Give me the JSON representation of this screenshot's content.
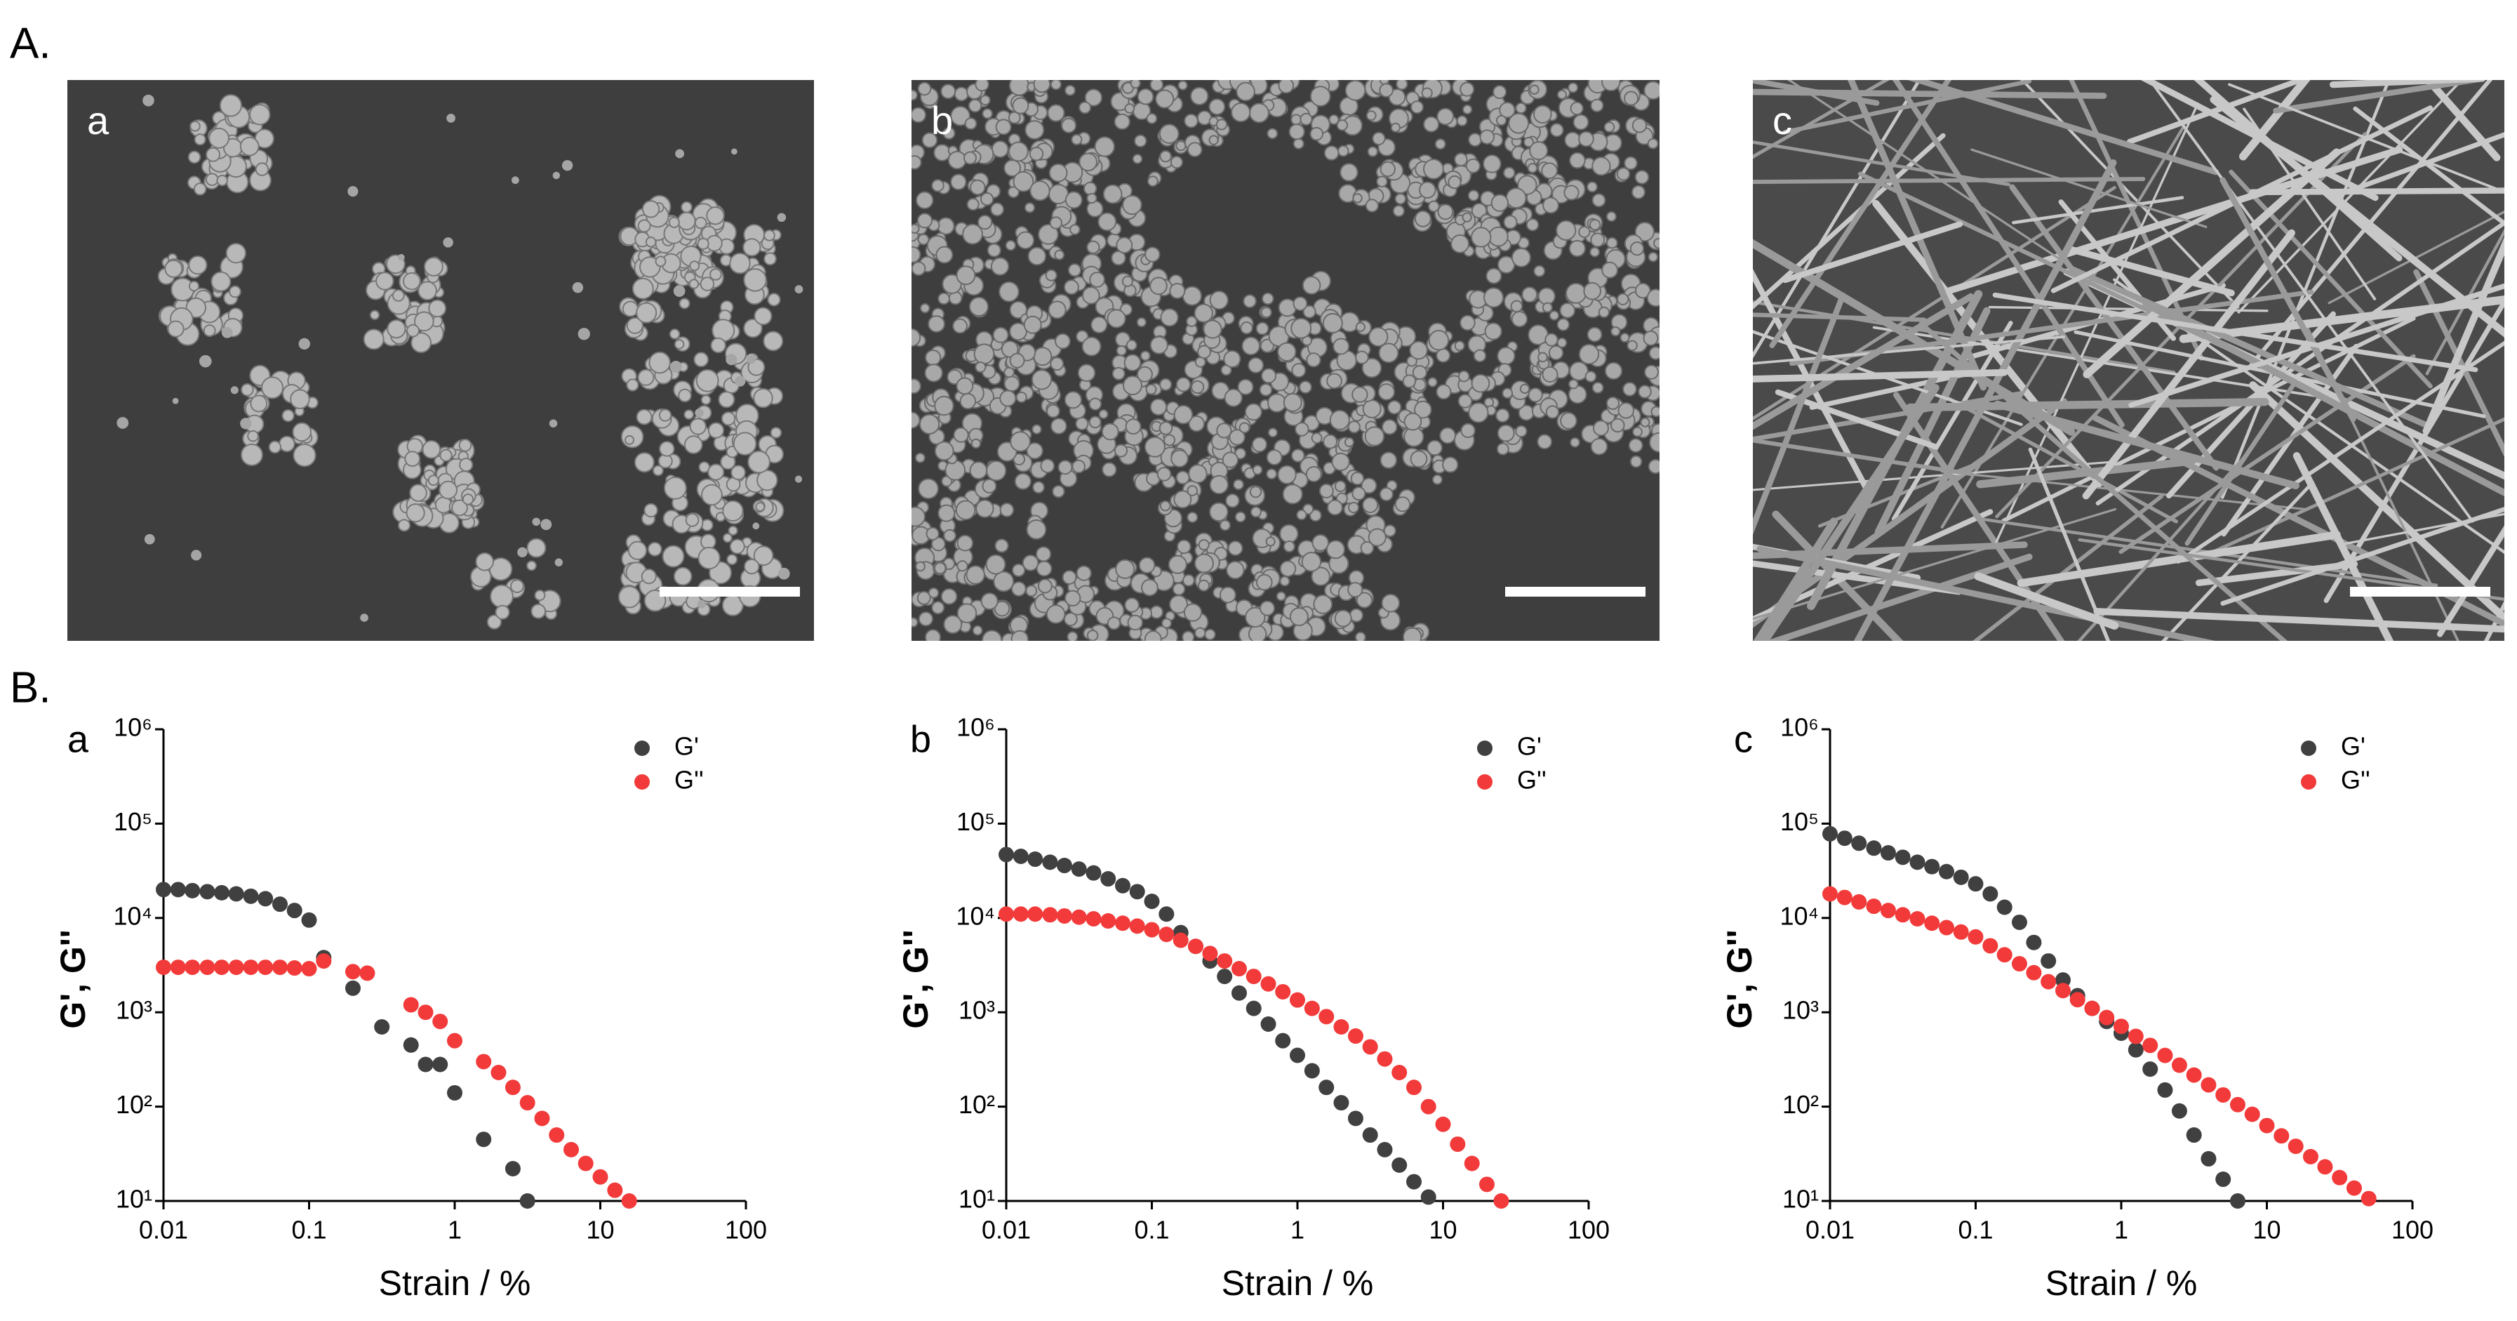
{
  "figure": {
    "section_a": "A.",
    "section_b": "B.",
    "images": [
      {
        "label": "a"
      },
      {
        "label": "b"
      },
      {
        "label": "c"
      }
    ]
  },
  "chart_data": [
    {
      "type": "scatter",
      "title": "a",
      "xlabel": "Strain / %",
      "ylabel": "G', G''",
      "xscale": "log",
      "yscale": "log",
      "legend": "upper right",
      "xlim": [
        0.01,
        100
      ],
      "ylim": [
        10,
        1000000
      ],
      "xticks": [
        0.01,
        0.1,
        1,
        10,
        100
      ],
      "yticks": [
        {
          "value": 10,
          "label": "10¹"
        },
        {
          "value": 100,
          "label": "10²"
        },
        {
          "value": 1000,
          "label": "10³"
        },
        {
          "value": 10000,
          "label": "10⁴"
        },
        {
          "value": 100000,
          "label": "10⁵"
        },
        {
          "value": 1000000,
          "label": "10⁶"
        }
      ],
      "x": [
        0.01,
        0.0126,
        0.0158,
        0.02,
        0.0251,
        0.0316,
        0.0398,
        0.0501,
        0.0631,
        0.0794,
        0.1,
        0.126,
        0.158,
        0.2,
        0.251,
        0.316,
        0.398,
        0.501,
        0.631,
        0.794,
        1,
        1.26,
        1.58,
        2,
        2.51,
        3.16,
        3.98,
        5.01,
        6.31,
        7.94,
        10,
        12.6,
        15.8,
        20,
        25.1,
        31.6,
        39.8,
        50.1
      ],
      "series": [
        {
          "name": "G'",
          "color": "#404040",
          "values": [
            20000,
            20000,
            19500,
            19000,
            18500,
            18000,
            17000,
            16000,
            14000,
            12000,
            9500,
            3800,
            null,
            1800,
            null,
            700,
            null,
            450,
            280,
            280,
            140,
            null,
            45,
            null,
            22,
            10,
            null,
            null,
            null,
            null,
            null,
            null,
            null,
            null,
            null,
            null,
            null,
            null
          ]
        },
        {
          "name": "G''",
          "color": "#f23a3a",
          "values": [
            3000,
            3000,
            3000,
            3000,
            3000,
            3000,
            3000,
            3000,
            3000,
            2950,
            2900,
            3500,
            null,
            2700,
            2600,
            null,
            null,
            1200,
            1000,
            800,
            500,
            null,
            300,
            230,
            160,
            110,
            75,
            50,
            35,
            25,
            18,
            13,
            10,
            null,
            null,
            null,
            null,
            null
          ]
        }
      ]
    },
    {
      "type": "scatter",
      "title": "b",
      "xlabel": "Strain / %",
      "ylabel": "G', G''",
      "xscale": "log",
      "yscale": "log",
      "legend": "upper right",
      "xlim": [
        0.01,
        100
      ],
      "ylim": [
        10,
        1000000
      ],
      "xticks": [
        0.01,
        0.1,
        1,
        10,
        100
      ],
      "yticks": [
        {
          "value": 10,
          "label": "10¹"
        },
        {
          "value": 100,
          "label": "10²"
        },
        {
          "value": 1000,
          "label": "10³"
        },
        {
          "value": 10000,
          "label": "10⁴"
        },
        {
          "value": 100000,
          "label": "10⁵"
        },
        {
          "value": 1000000,
          "label": "10⁶"
        }
      ],
      "x": [
        0.01,
        0.0126,
        0.0158,
        0.02,
        0.0251,
        0.0316,
        0.0398,
        0.0501,
        0.0631,
        0.0794,
        0.1,
        0.126,
        0.158,
        0.2,
        0.251,
        0.316,
        0.398,
        0.501,
        0.631,
        0.794,
        1,
        1.26,
        1.58,
        2,
        2.51,
        3.16,
        3.98,
        5.01,
        6.31,
        7.94,
        10,
        12.6,
        15.8,
        20,
        25.1,
        31.6,
        39.8,
        50.1
      ],
      "series": [
        {
          "name": "G'",
          "color": "#404040",
          "values": [
            47000,
            45000,
            42000,
            39000,
            36000,
            33000,
            30000,
            26000,
            22000,
            19000,
            15000,
            11000,
            7000,
            5000,
            3500,
            2400,
            1600,
            1100,
            750,
            500,
            350,
            240,
            160,
            110,
            75,
            50,
            35,
            24,
            16,
            11,
            null,
            null,
            null,
            null,
            null,
            null,
            null,
            null
          ]
        },
        {
          "name": "G''",
          "color": "#f23a3a",
          "values": [
            11000,
            11000,
            11000,
            10800,
            10500,
            10200,
            9800,
            9300,
            8800,
            8200,
            7500,
            6700,
            5800,
            5000,
            4200,
            3500,
            2900,
            2400,
            2000,
            1650,
            1350,
            1100,
            900,
            700,
            560,
            430,
            320,
            230,
            160,
            100,
            65,
            40,
            25,
            15,
            10,
            null,
            null,
            null
          ]
        }
      ]
    },
    {
      "type": "scatter",
      "title": "c",
      "xlabel": "Strain / %",
      "ylabel": "G', G''",
      "xscale": "log",
      "yscale": "log",
      "legend": "upper right",
      "xlim": [
        0.01,
        100
      ],
      "ylim": [
        10,
        1000000
      ],
      "xticks": [
        0.01,
        0.1,
        1,
        10,
        100
      ],
      "yticks": [
        {
          "value": 10,
          "label": "10¹"
        },
        {
          "value": 100,
          "label": "10²"
        },
        {
          "value": 1000,
          "label": "10³"
        },
        {
          "value": 10000,
          "label": "10⁴"
        },
        {
          "value": 100000,
          "label": "10⁵"
        },
        {
          "value": 1000000,
          "label": "10⁶"
        }
      ],
      "x": [
        0.01,
        0.0126,
        0.0158,
        0.02,
        0.0251,
        0.0316,
        0.0398,
        0.0501,
        0.0631,
        0.0794,
        0.1,
        0.126,
        0.158,
        0.2,
        0.251,
        0.316,
        0.398,
        0.501,
        0.631,
        0.794,
        1,
        1.26,
        1.58,
        2,
        2.51,
        3.16,
        3.98,
        5.01,
        6.31,
        7.94,
        10,
        12.6,
        15.8,
        20,
        25.1,
        31.6,
        39.8,
        50.1
      ],
      "series": [
        {
          "name": "G'",
          "color": "#404040",
          "values": [
            78000,
            70000,
            62000,
            55000,
            49000,
            44000,
            39000,
            35000,
            31000,
            27000,
            23000,
            18000,
            13000,
            9000,
            5500,
            3500,
            2200,
            1500,
            1100,
            800,
            600,
            400,
            250,
            150,
            90,
            50,
            28,
            17,
            10,
            null,
            null,
            null,
            null,
            null,
            null,
            null,
            null,
            null
          ]
        },
        {
          "name": "G''",
          "color": "#f23a3a",
          "values": [
            18000,
            16500,
            14800,
            13300,
            12000,
            10800,
            9800,
            8800,
            7900,
            7100,
            6300,
            5070,
            4070,
            3270,
            2630,
            2110,
            1700,
            1360,
            1100,
            880,
            710,
            556,
            446,
            349,
            275,
            216,
            170,
            133,
            105,
            83,
            63,
            49,
            38,
            29.5,
            23,
            17.7,
            13.7,
            10.6
          ]
        }
      ]
    }
  ]
}
